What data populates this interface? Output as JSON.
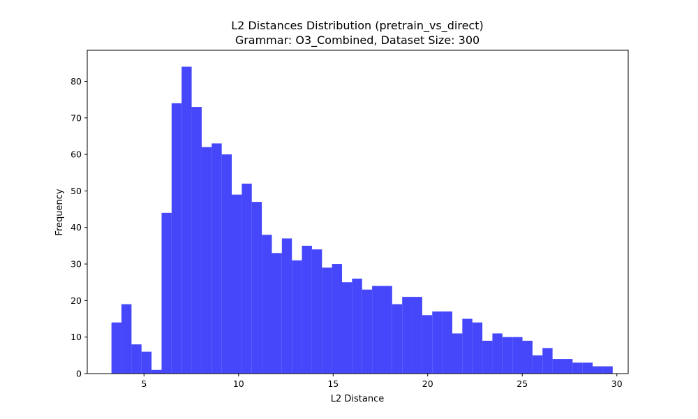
{
  "chart_data": {
    "type": "bar",
    "title": "L2 Distances Distribution (pretrain_vs_direct)",
    "subtitle": "Grammar: O3_Combined, Dataset Size: 300",
    "xlabel": "L2 Distance",
    "ylabel": "Frequency",
    "xlim": [
      2.0,
      30.6
    ],
    "ylim": [
      0,
      88.5
    ],
    "xticks": [
      5,
      10,
      15,
      20,
      25,
      30
    ],
    "yticks": [
      0,
      10,
      20,
      30,
      40,
      50,
      60,
      70,
      80
    ],
    "grid": false,
    "legend": "none",
    "bar_color": "#4646fb",
    "bin_edges": [
      3.28,
      3.81,
      4.34,
      4.87,
      5.4,
      5.93,
      6.46,
      6.99,
      7.52,
      8.05,
      8.58,
      9.11,
      9.64,
      10.17,
      10.7,
      11.23,
      11.76,
      12.29,
      12.82,
      13.35,
      13.88,
      14.41,
      14.94,
      15.47,
      16.0,
      16.53,
      17.06,
      17.59,
      18.12,
      18.65,
      19.18,
      19.71,
      20.24,
      20.77,
      21.3,
      21.83,
      22.36,
      22.89,
      23.42,
      23.95,
      24.48,
      25.01,
      25.54,
      26.07,
      26.6,
      27.13,
      27.66,
      28.19,
      28.72,
      29.25,
      29.78
    ],
    "values": [
      14,
      19,
      8,
      6,
      1,
      44,
      74,
      84,
      73,
      62,
      63,
      60,
      49,
      52,
      47,
      38,
      33,
      37,
      31,
      35,
      34,
      29,
      30,
      25,
      26,
      23,
      24,
      24,
      19,
      21,
      21,
      16,
      17,
      17,
      11,
      15,
      14,
      9,
      11,
      10,
      10,
      9,
      5,
      7,
      4,
      4,
      3,
      3,
      2,
      2
    ]
  }
}
